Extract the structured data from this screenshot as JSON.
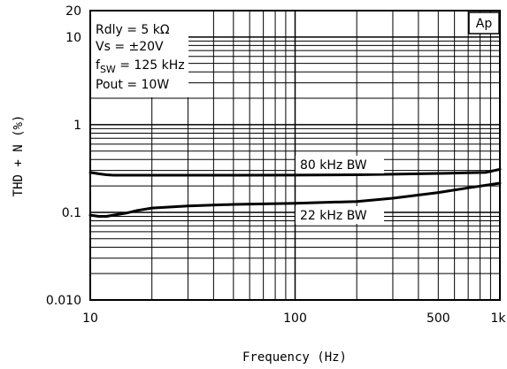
{
  "chart_data": {
    "type": "line",
    "xlabel": "Frequency (Hz)",
    "ylabel": "THD + N (%)",
    "x_scale": "log",
    "y_scale": "log",
    "xlim": [
      10,
      1000
    ],
    "ylim": [
      0.01,
      20
    ],
    "grid": true,
    "x_tick_labels": [
      {
        "value": 10,
        "label": "10"
      },
      {
        "value": 100,
        "label": "100"
      },
      {
        "value": 500,
        "label": "500"
      },
      {
        "value": 1000,
        "label": "1k"
      }
    ],
    "y_tick_labels": [
      {
        "value": 20,
        "label": "20"
      },
      {
        "value": 10,
        "label": "10"
      },
      {
        "value": 1,
        "label": "1"
      },
      {
        "value": 0.1,
        "label": "0.1"
      },
      {
        "value": 0.01,
        "label": "0.010"
      }
    ],
    "conditions": {
      "rdly": "Rdly = 5 kΩ",
      "vs": "Vs = ±20V",
      "fsw_prefix": "f",
      "fsw_sub": "SW",
      "fsw_suffix": " = 125 kHz",
      "pout": "Pout = 10W"
    },
    "corner_label": "Ap",
    "series": [
      {
        "name": "80 kHz BW",
        "x": [
          10,
          11,
          12,
          13,
          15,
          20,
          30,
          50,
          100,
          200,
          300,
          500,
          700,
          850,
          1000
        ],
        "values": [
          0.285,
          0.275,
          0.268,
          0.265,
          0.265,
          0.265,
          0.265,
          0.265,
          0.266,
          0.268,
          0.272,
          0.278,
          0.282,
          0.285,
          0.31
        ]
      },
      {
        "name": "22 kHz BW",
        "x": [
          10,
          11,
          12,
          13,
          15,
          17,
          20,
          30,
          50,
          100,
          200,
          300,
          500,
          700,
          1000
        ],
        "values": [
          0.093,
          0.09,
          0.09,
          0.093,
          0.098,
          0.105,
          0.112,
          0.118,
          0.123,
          0.127,
          0.133,
          0.145,
          0.168,
          0.19,
          0.215
        ]
      }
    ]
  }
}
